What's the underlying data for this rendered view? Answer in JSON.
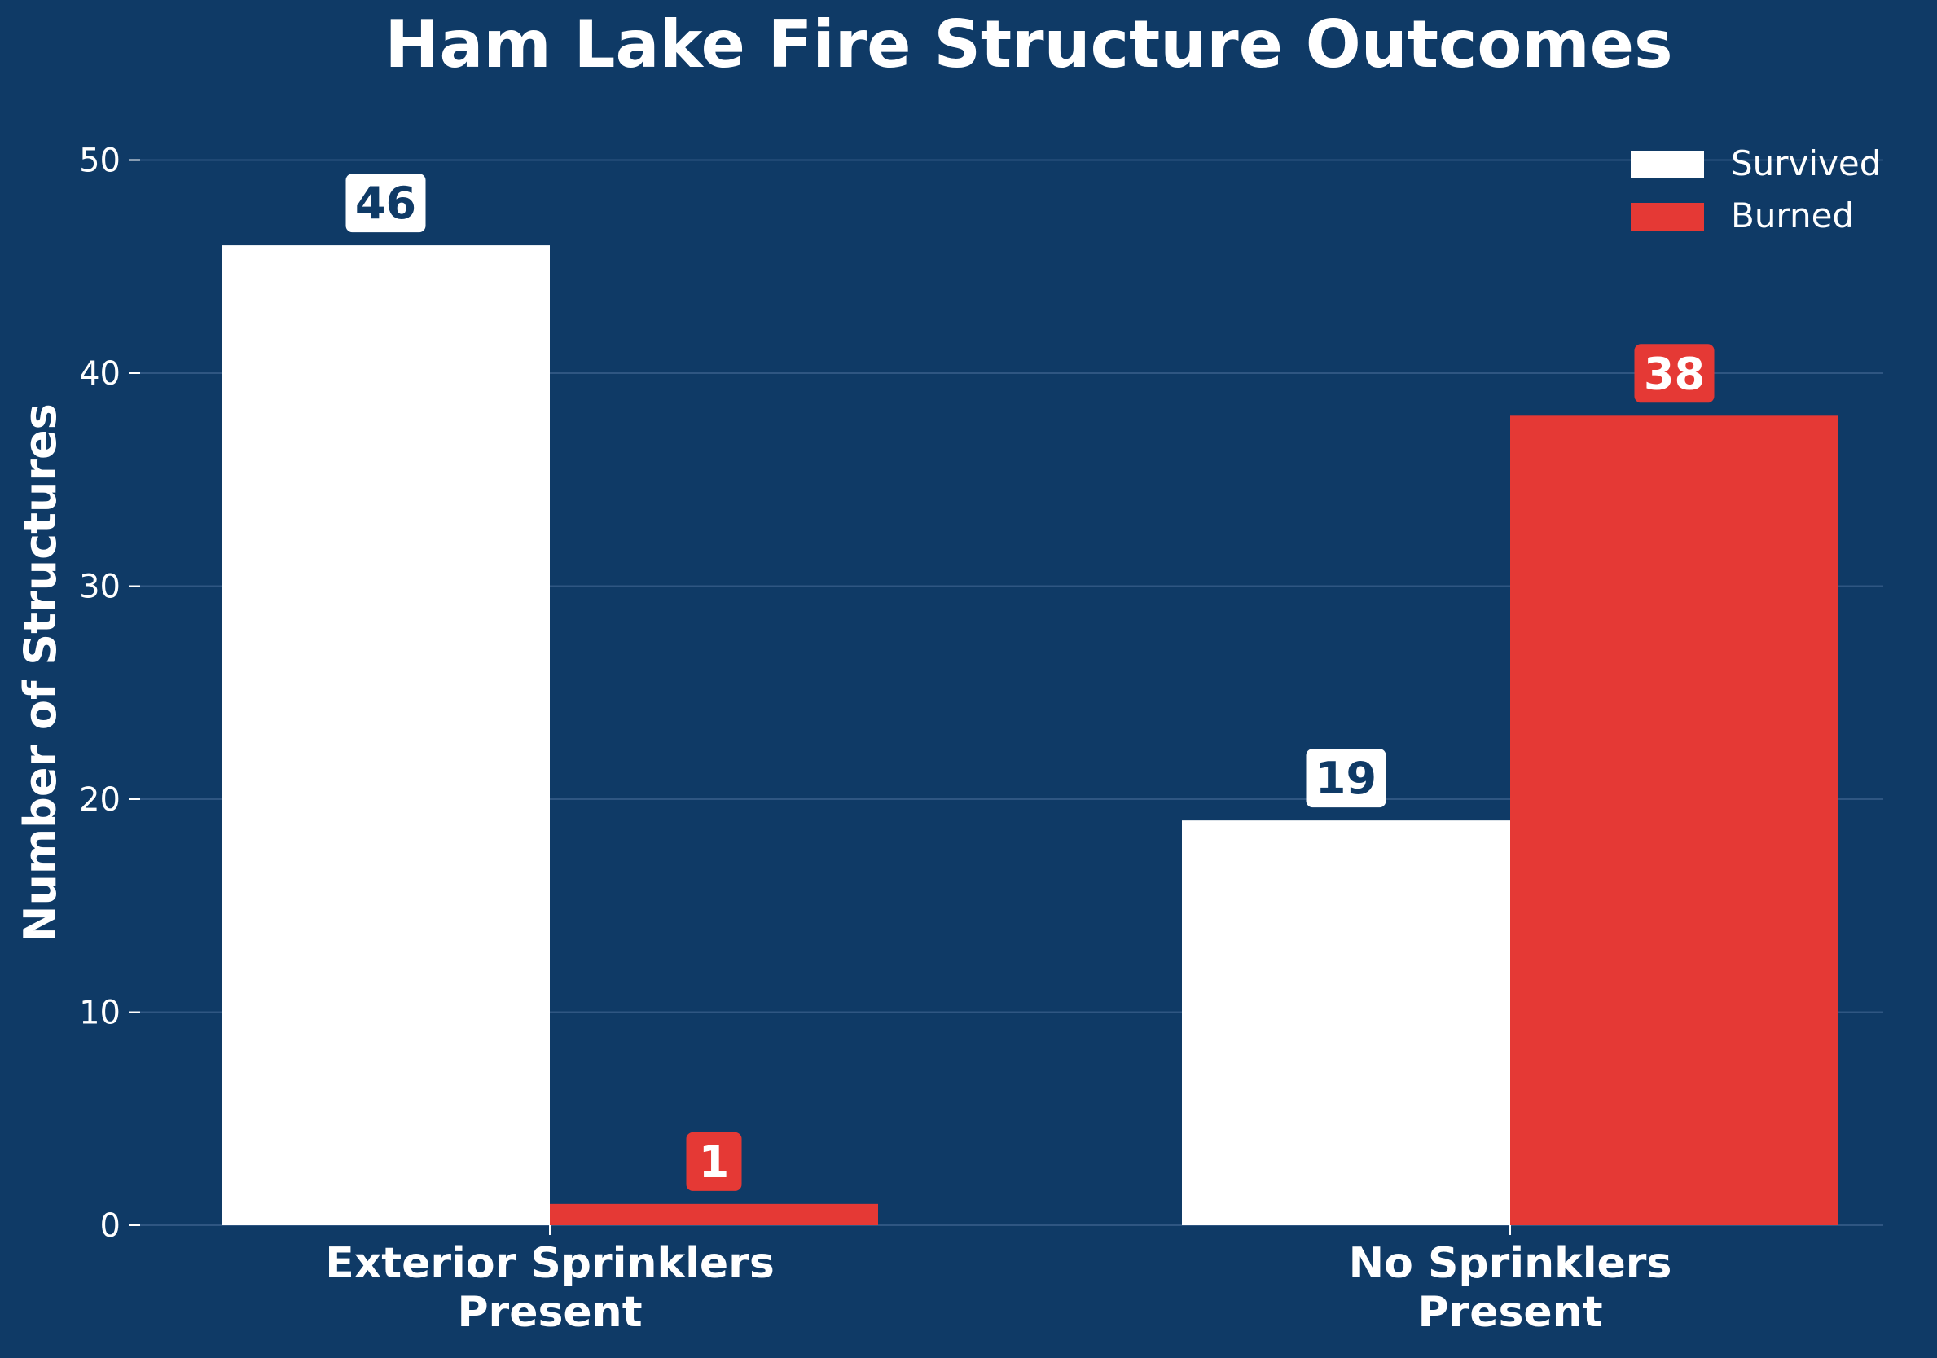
{
  "chart_data": {
    "type": "bar",
    "title": "Ham Lake Fire Structure Outcomes",
    "xlabel": "",
    "ylabel": "Number of Structures",
    "categories": [
      [
        "Exterior Sprinklers",
        "Present"
      ],
      [
        "No Sprinklers",
        "Present"
      ]
    ],
    "series": [
      {
        "name": "Survived",
        "values": [
          46,
          19
        ],
        "color": "#ffffff",
        "label_text_color": "#0f3a66"
      },
      {
        "name": "Burned",
        "values": [
          1,
          38
        ],
        "color": "#e53935",
        "label_text_color": "#ffffff"
      }
    ],
    "ylim": [
      0,
      52
    ],
    "yticks": [
      0,
      10,
      20,
      30,
      40,
      50
    ],
    "grid": true,
    "legend_position": "top-right",
    "colors": {
      "background": "#0f3a66",
      "text": "#ffffff",
      "grid": "#2f5682"
    }
  }
}
